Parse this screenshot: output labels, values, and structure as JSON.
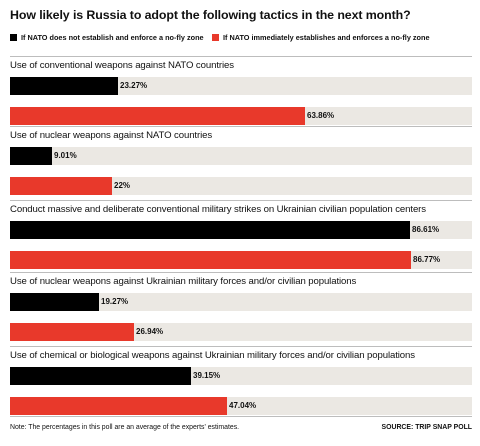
{
  "chart_data": {
    "type": "bar",
    "orientation": "horizontal",
    "title": "How likely is Russia to adopt the following tactics in the next month?",
    "xlim": [
      0,
      100
    ],
    "legend": [
      {
        "name": "If NATO does not establish and enforce a no-fly zone",
        "color": "#000000"
      },
      {
        "name": "If NATO immediately establishes and enforces a no-fly zone",
        "color": "#e8392b"
      }
    ],
    "categories": [
      "Use of conventional weapons against NATO countries",
      "Use of nuclear weapons against NATO countries",
      "Conduct massive and deliberate conventional military strikes on Ukrainian civilian population centers",
      "Use of nuclear weapons against Ukrainian military forces and/or civilian populations",
      "Use of chemical or biological weapons against Ukrainian military forces and/or civilian populations"
    ],
    "series": [
      {
        "name": "If NATO does not establish and enforce a no-fly zone",
        "color": "#000000",
        "values": [
          23.27,
          9.01,
          86.61,
          19.27,
          39.15
        ],
        "labels": [
          "23.27%",
          "9.01%",
          "86.61%",
          "19.27%",
          "39.15%"
        ]
      },
      {
        "name": "If NATO immediately establishes and enforces a no-fly zone",
        "color": "#e8392b",
        "values": [
          63.86,
          22,
          86.77,
          26.94,
          47.04
        ],
        "labels": [
          "63.86%",
          "22%",
          "86.77%",
          "26.94%",
          "47.04%"
        ]
      }
    ],
    "track_color": "#ebe8e3"
  },
  "footer": {
    "note": "Note: The percentages in this poll are an average of the experts' estimates.",
    "source": "SOURCE: TRIP SNAP POLL"
  }
}
